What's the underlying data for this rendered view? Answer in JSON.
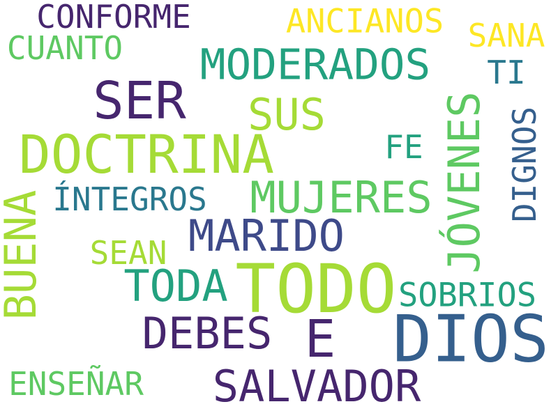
{
  "colors": {
    "background": "#ffffff",
    "dark_purple": "#46266e",
    "indigo": "#3e4a89",
    "blue": "#355f8d",
    "teal": "#2a788e",
    "teal_green": "#23a17f",
    "green": "#5ec962",
    "lime": "#a5db36",
    "yellow": "#fde725"
  },
  "words": [
    {
      "text": "CONFORME"
    },
    {
      "text": "ANCIANOS"
    },
    {
      "text": "SANA"
    },
    {
      "text": "CUANTO"
    },
    {
      "text": "MODERADOS"
    },
    {
      "text": "TI"
    },
    {
      "text": "SER"
    },
    {
      "text": "SUS"
    },
    {
      "text": "DOCTRINA"
    },
    {
      "text": "FE"
    },
    {
      "text": "JÓVENES"
    },
    {
      "text": "DIGNOS"
    },
    {
      "text": "ÍNTEGROS"
    },
    {
      "text": "MUJERES"
    },
    {
      "text": "BUENA"
    },
    {
      "text": "MARIDO"
    },
    {
      "text": "SEAN"
    },
    {
      "text": "TODA"
    },
    {
      "text": "TODO"
    },
    {
      "text": "SOBRIOS"
    },
    {
      "text": "DEBES"
    },
    {
      "text": "E"
    },
    {
      "text": "DIOS"
    },
    {
      "text": "ENSEÑAR"
    },
    {
      "text": "SALVADOR"
    }
  ]
}
